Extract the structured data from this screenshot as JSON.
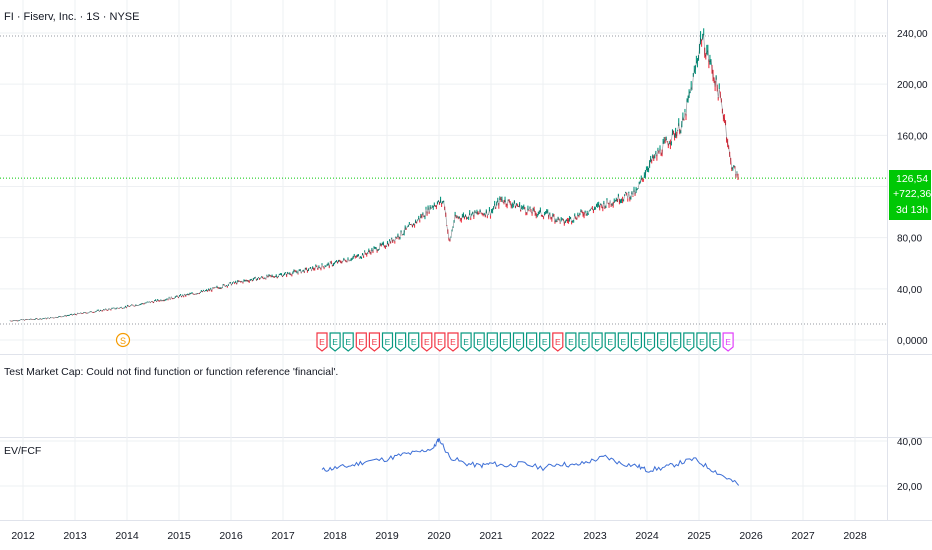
{
  "header": {
    "symbol_title": "FI · Fiserv, Inc. · 1S · NYSE"
  },
  "price_badge": {
    "price": "126,54",
    "change": "+722,36%",
    "countdown": "3d 13h",
    "color": "#00c805"
  },
  "indicator_error": {
    "text": "Test Market Cap: Could not find function or function reference 'financial'."
  },
  "indicator_pane": {
    "label": "EV/FCF",
    "color": "#3d6fd6"
  },
  "colors": {
    "up": "#089981",
    "down": "#f23645",
    "earnings_up": "#089981",
    "earnings_down": "#f23645",
    "earnings_next": "#e040fb",
    "split": "#f59b00",
    "grid": "#eef0f3",
    "price_line": "#00c805"
  },
  "markers": {
    "split_letter": "S",
    "earnings_letter": "E"
  },
  "chart_data": [
    {
      "type": "line",
      "title": "FI · Fiserv, Inc. · 1S · NYSE",
      "y_scale": "linear",
      "ylim": [
        0,
        240
      ],
      "y_ticks": [
        "240,00",
        "200,00",
        "160,00",
        "80,00",
        "40,00",
        "0,0000"
      ],
      "x_ticks": [
        "2012",
        "2013",
        "2014",
        "2015",
        "2016",
        "2017",
        "2018",
        "2019",
        "2020",
        "2021",
        "2022",
        "2023",
        "2024",
        "2025",
        "2026",
        "2027",
        "2028"
      ],
      "series": [
        {
          "x": [
            2011.75,
            2012.5,
            2013.0,
            2013.5,
            2014.0,
            2014.5,
            2015.0,
            2015.5,
            2016.0,
            2016.5,
            2017.0,
            2017.5,
            2018.0,
            2018.5,
            2019.0,
            2019.5,
            2019.9,
            2020.1,
            2020.2,
            2020.3,
            2020.6,
            2021.0,
            2021.2,
            2021.5,
            2021.8,
            2022.1,
            2022.4,
            2022.8,
            2023.0,
            2023.4,
            2023.8,
            2024.0,
            2024.3,
            2024.7,
            2024.9,
            2025.05,
            2025.15,
            2025.25,
            2025.4,
            2025.5,
            2025.6,
            2025.75
          ],
          "values": [
            15,
            17,
            20,
            23,
            26,
            30,
            34,
            38,
            44,
            48,
            51,
            55,
            60,
            66,
            75,
            90,
            106,
            108,
            75,
            95,
            98,
            100,
            110,
            105,
            100,
            98,
            92,
            100,
            103,
            110,
            115,
            135,
            150,
            170,
            205,
            238,
            225,
            212,
            190,
            172,
            140,
            127
          ]
        }
      ],
      "last_value": 126.54
    },
    {
      "type": "line",
      "title": "EV/FCF",
      "y_ticks": [
        "40,00",
        "20,00"
      ],
      "series": [
        {
          "name": "EV/FCF",
          "x": [
            2017.75,
            2018.0,
            2018.3,
            2018.6,
            2019.0,
            2019.3,
            2019.6,
            2019.9,
            2020.0,
            2020.2,
            2020.5,
            2020.8,
            2021.0,
            2021.3,
            2021.6,
            2022.0,
            2022.3,
            2022.6,
            2022.9,
            2023.2,
            2023.5,
            2023.8,
            2024.0,
            2024.3,
            2024.6,
            2024.9,
            2025.2,
            2025.5,
            2025.8
          ],
          "values": [
            27,
            28,
            29,
            31,
            32,
            34,
            35,
            37,
            41,
            33,
            30,
            29,
            30,
            29,
            30,
            28,
            30,
            29,
            31,
            33,
            30,
            29,
            27,
            28,
            30,
            32,
            28,
            24,
            20
          ]
        }
      ]
    }
  ]
}
